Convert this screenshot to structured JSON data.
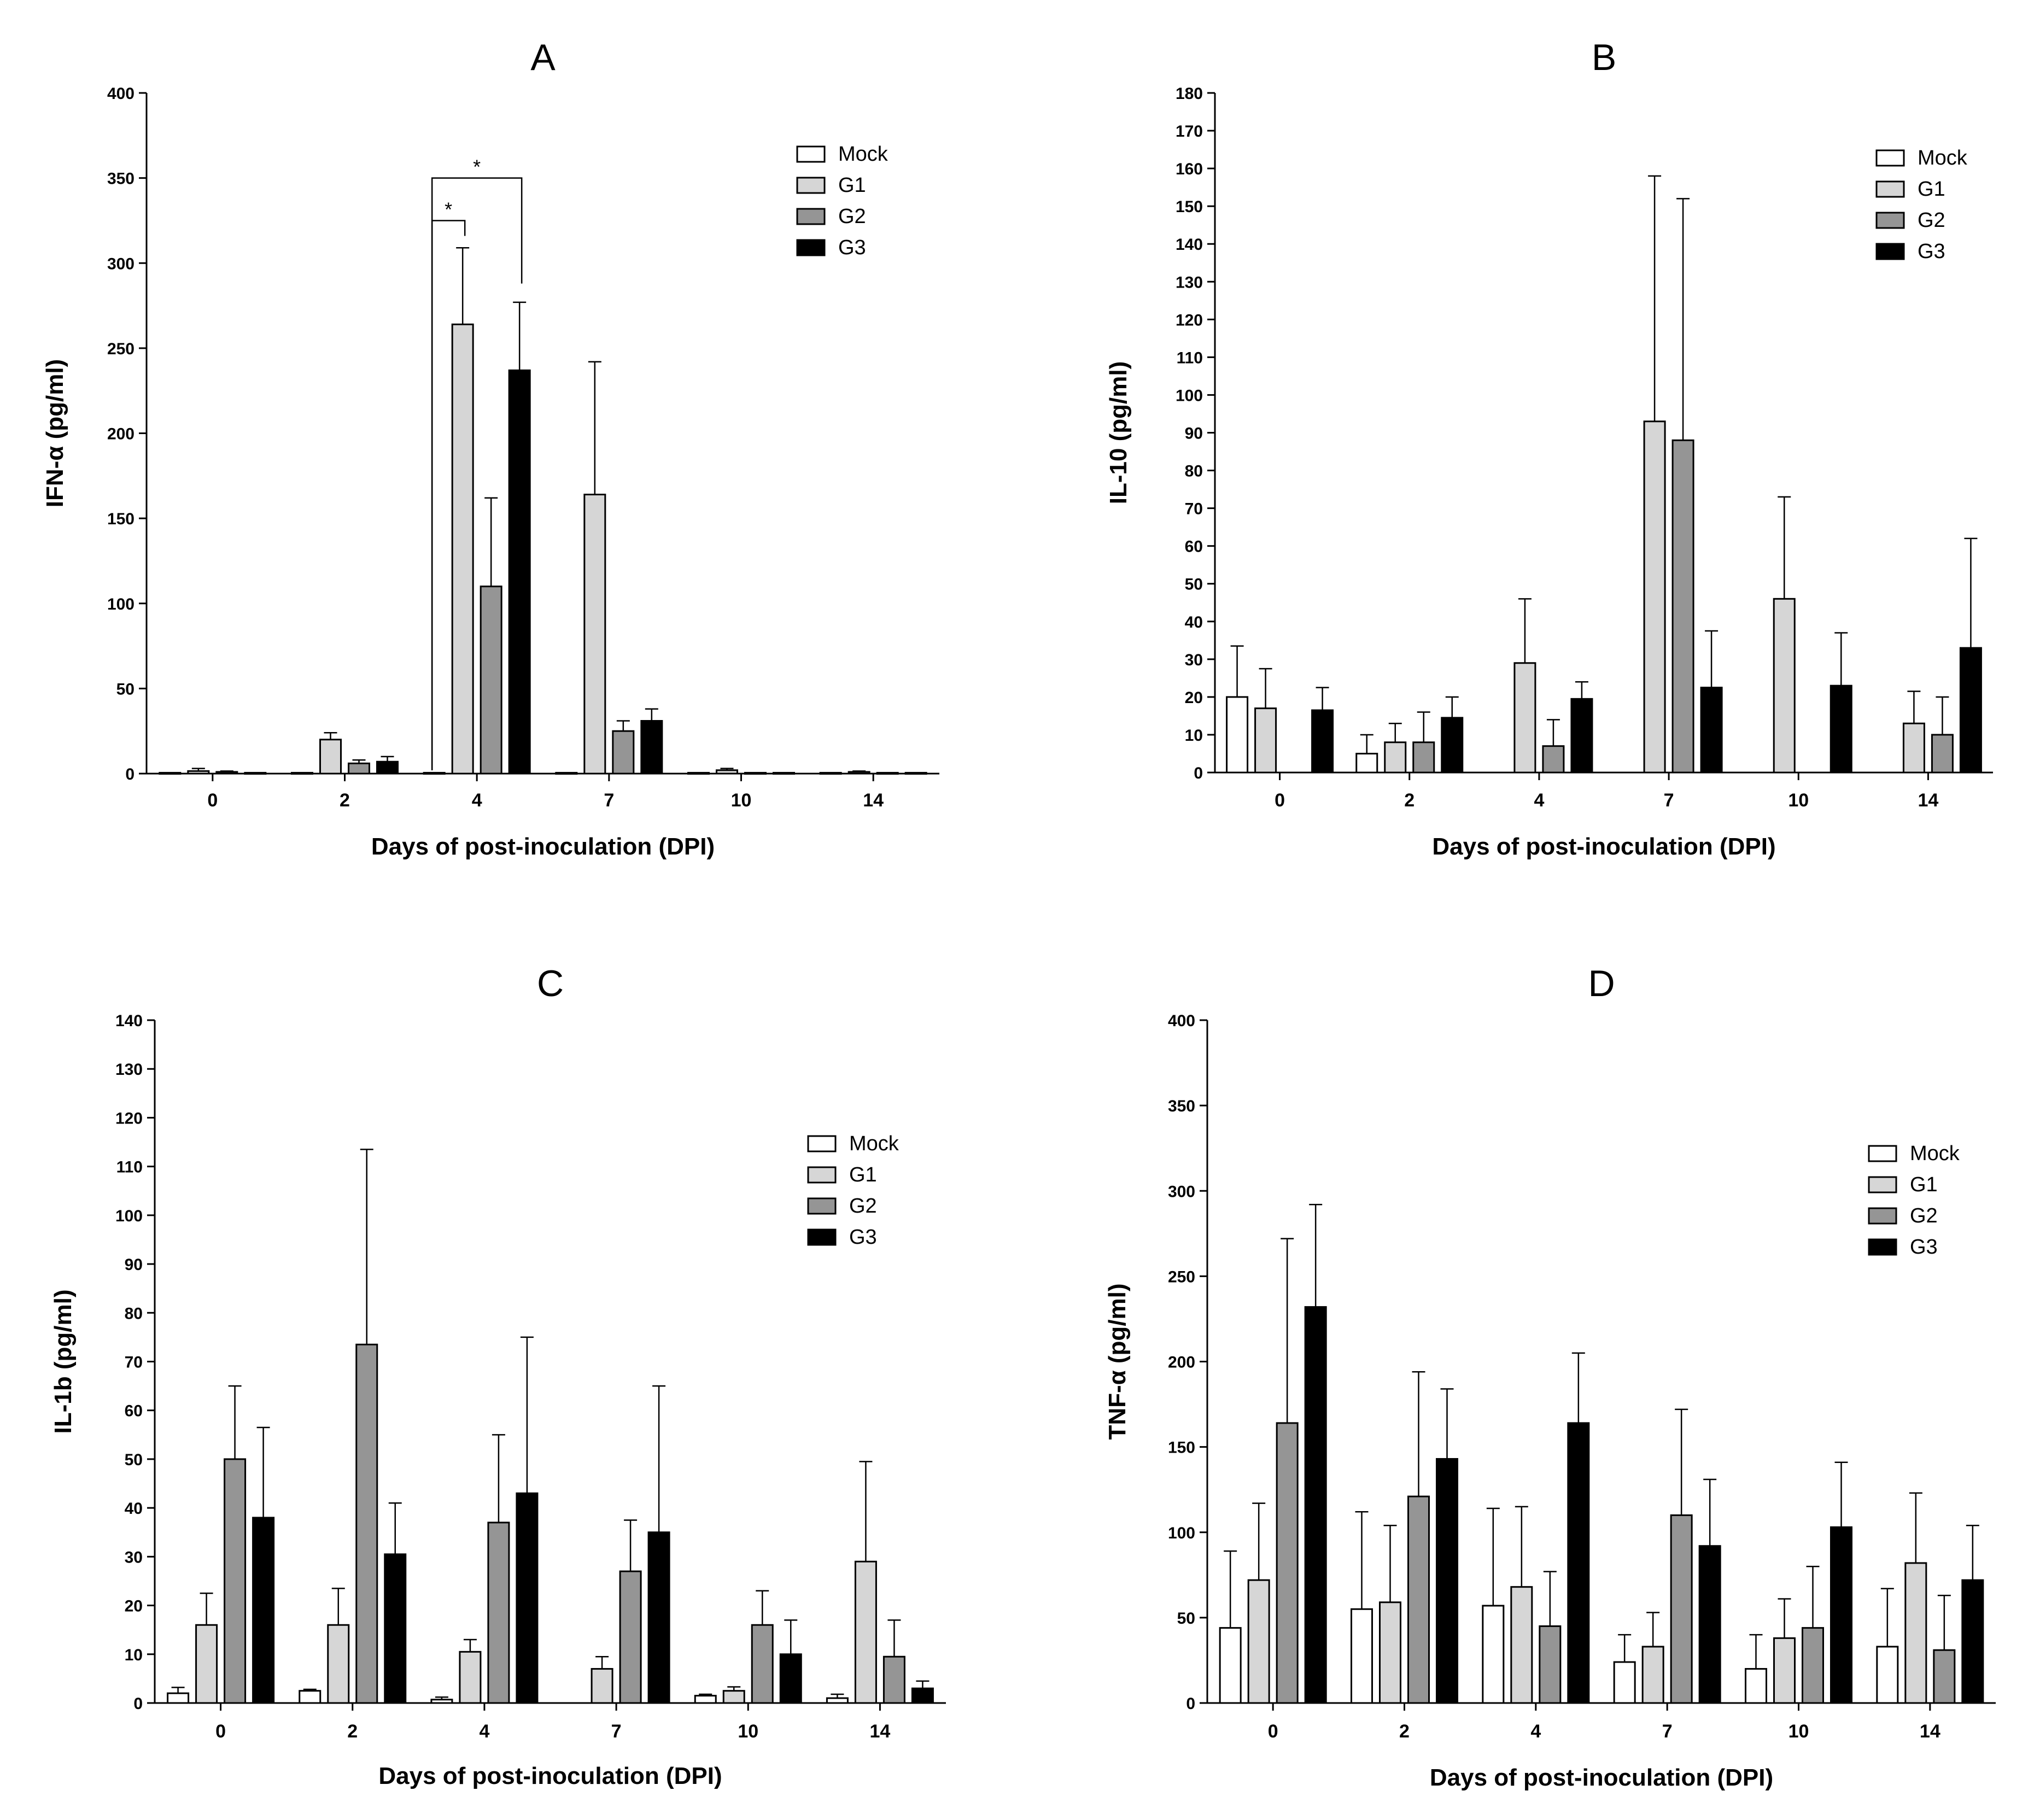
{
  "legend": [
    "Mock",
    "G1",
    "G2",
    "G3"
  ],
  "colors": {
    "Mock": "#ffffff",
    "G1": "#d6d6d6",
    "G2": "#959595",
    "G3": "#000000",
    "stroke": "#000000"
  },
  "chart_data": [
    {
      "type": "bar",
      "title": "A",
      "xlabel": "Days of post-inoculation (DPI)",
      "ylabel": "IFN-α (pg/ml)",
      "ylim": [
        0,
        400
      ],
      "ytick_step": 50,
      "categories": [
        "0",
        "2",
        "4",
        "7",
        "10",
        "14"
      ],
      "series": [
        {
          "name": "Mock",
          "values": [
            0.5,
            0.5,
            0.5,
            0.5,
            0.5,
            0.5
          ],
          "errors": [
            0,
            0,
            0,
            0,
            0,
            0
          ]
        },
        {
          "name": "G1",
          "values": [
            1.5,
            20,
            264,
            164,
            2,
            1
          ],
          "errors": [
            1.5,
            4,
            45,
            78,
            1,
            0.5
          ]
        },
        {
          "name": "G2",
          "values": [
            1,
            6,
            110,
            25,
            0.5,
            0.5
          ],
          "errors": [
            0.5,
            2,
            52,
            6,
            0,
            0
          ]
        },
        {
          "name": "G3",
          "values": [
            0.5,
            7,
            237,
            31,
            0.5,
            0.5
          ],
          "errors": [
            0,
            3,
            40,
            7,
            0,
            0
          ]
        }
      ],
      "annotations": [
        {
          "text": "*",
          "from_category": "4",
          "from_series": "Mock",
          "to_series": "G1",
          "level": 325,
          "right_drop": 316
        },
        {
          "text": "*",
          "from_category": "4",
          "from_series": "Mock",
          "to_series": "G3",
          "level": 350,
          "right_drop": 288
        }
      ]
    },
    {
      "type": "bar",
      "title": "B",
      "xlabel": "Days of post-inoculation (DPI)",
      "ylabel": "IL-10 (pg/ml)",
      "ylim": [
        0,
        180
      ],
      "ytick_step": 10,
      "categories": [
        "0",
        "2",
        "4",
        "7",
        "10",
        "14"
      ],
      "series": [
        {
          "name": "Mock",
          "values": [
            20,
            5,
            0,
            0,
            0,
            0
          ],
          "errors": [
            13.5,
            5,
            0,
            0,
            0,
            0
          ]
        },
        {
          "name": "G1",
          "values": [
            17,
            8,
            29,
            93,
            46,
            13
          ],
          "errors": [
            10.5,
            5,
            17,
            65,
            27,
            8.5
          ]
        },
        {
          "name": "G2",
          "values": [
            0,
            8,
            7,
            88,
            0,
            10
          ],
          "errors": [
            0,
            8,
            7,
            64,
            0,
            10
          ]
        },
        {
          "name": "G3",
          "values": [
            16.5,
            14.5,
            19.5,
            22.5,
            23,
            33
          ],
          "errors": [
            6,
            5.5,
            4.5,
            15,
            14,
            29
          ]
        }
      ]
    },
    {
      "type": "bar",
      "title": "C",
      "xlabel": "Days of post-inoculation (DPI)",
      "ylabel": "IL-1b (pg/ml)",
      "ylim": [
        0,
        140
      ],
      "ytick_step": 10,
      "categories": [
        "0",
        "2",
        "4",
        "7",
        "10",
        "14"
      ],
      "series": [
        {
          "name": "Mock",
          "values": [
            2,
            2.5,
            0.7,
            0,
            1.5,
            1
          ],
          "errors": [
            1.2,
            0.3,
            0.5,
            0,
            0.3,
            0.8
          ]
        },
        {
          "name": "G1",
          "values": [
            16,
            16,
            10.5,
            7,
            2.5,
            29
          ],
          "errors": [
            6.5,
            7.5,
            2.5,
            2.5,
            0.8,
            20.5
          ]
        },
        {
          "name": "G2",
          "values": [
            50,
            73.5,
            37,
            27,
            16,
            9.5
          ],
          "errors": [
            15,
            40,
            18,
            10.5,
            7,
            7.5
          ]
        },
        {
          "name": "G3",
          "values": [
            38,
            30.5,
            43,
            35,
            10,
            3
          ],
          "errors": [
            18.5,
            10.5,
            32,
            30,
            7,
            1.5
          ]
        }
      ]
    },
    {
      "type": "bar",
      "title": "D",
      "xlabel": "Days of post-inoculation (DPI)",
      "ylabel": "TNF-α (pg/ml)",
      "ylim": [
        0,
        400
      ],
      "ytick_step": 50,
      "categories": [
        "0",
        "2",
        "4",
        "7",
        "10",
        "14"
      ],
      "series": [
        {
          "name": "Mock",
          "values": [
            44,
            55,
            57,
            24,
            20,
            33
          ],
          "errors": [
            45,
            57,
            57,
            16,
            20,
            34
          ]
        },
        {
          "name": "G1",
          "values": [
            72,
            59,
            68,
            33,
            38,
            82
          ],
          "errors": [
            45,
            45,
            47,
            20,
            23,
            41
          ]
        },
        {
          "name": "G2",
          "values": [
            164,
            121,
            45,
            110,
            44,
            31
          ],
          "errors": [
            108,
            73,
            32,
            62,
            36,
            32
          ]
        },
        {
          "name": "G3",
          "values": [
            232,
            143,
            164,
            92,
            103,
            72
          ],
          "errors": [
            60,
            41,
            41,
            39,
            38,
            32
          ]
        }
      ]
    }
  ]
}
